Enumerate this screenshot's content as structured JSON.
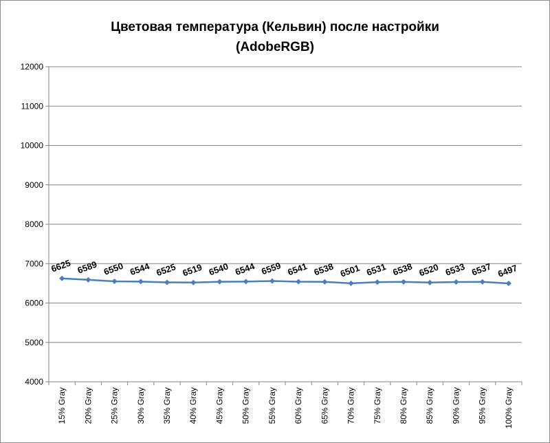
{
  "chart_data": {
    "type": "line",
    "title": "Цветовая температура (Кельвин) после настройки",
    "subtitle": "(AdobeRGB)",
    "xlabel": "",
    "ylabel": "",
    "ylim": [
      4000,
      12000
    ],
    "ytick_step": 1000,
    "yticks": [
      "4000",
      "5000",
      "6000",
      "7000",
      "8000",
      "9000",
      "10000",
      "11000",
      "12000"
    ],
    "grid": true,
    "legend": "none",
    "categories": [
      "15% Gray",
      "20% Gray",
      "25% Gray",
      "30% Gray",
      "35% Gray",
      "40% Gray",
      "45% Gray",
      "50% Gray",
      "55% Gray",
      "60% Gray",
      "65% Gray",
      "70% Gray",
      "75% Gray",
      "80% Gray",
      "85% Gray",
      "90% Gray",
      "95% Gray",
      "100% Gray"
    ],
    "series": [
      {
        "values": [
          6625,
          6589,
          6550,
          6544,
          6525,
          6519,
          6540,
          6544,
          6559,
          6541,
          6538,
          6501,
          6531,
          6538,
          6520,
          6533,
          6537,
          6497
        ],
        "color": "#4a7ebb",
        "marker": "diamond"
      }
    ],
    "data_labels": [
      "6625",
      "6589",
      "6550",
      "6544",
      "6525",
      "6519",
      "6540",
      "6544",
      "6559",
      "6541",
      "6538",
      "6501",
      "6531",
      "6538",
      "6520",
      "6533",
      "6537",
      "6497"
    ],
    "colors": {
      "grid": "#868686",
      "axis": "#868686",
      "line": "#4a7ebb",
      "marker": "#4a7ebb"
    }
  }
}
